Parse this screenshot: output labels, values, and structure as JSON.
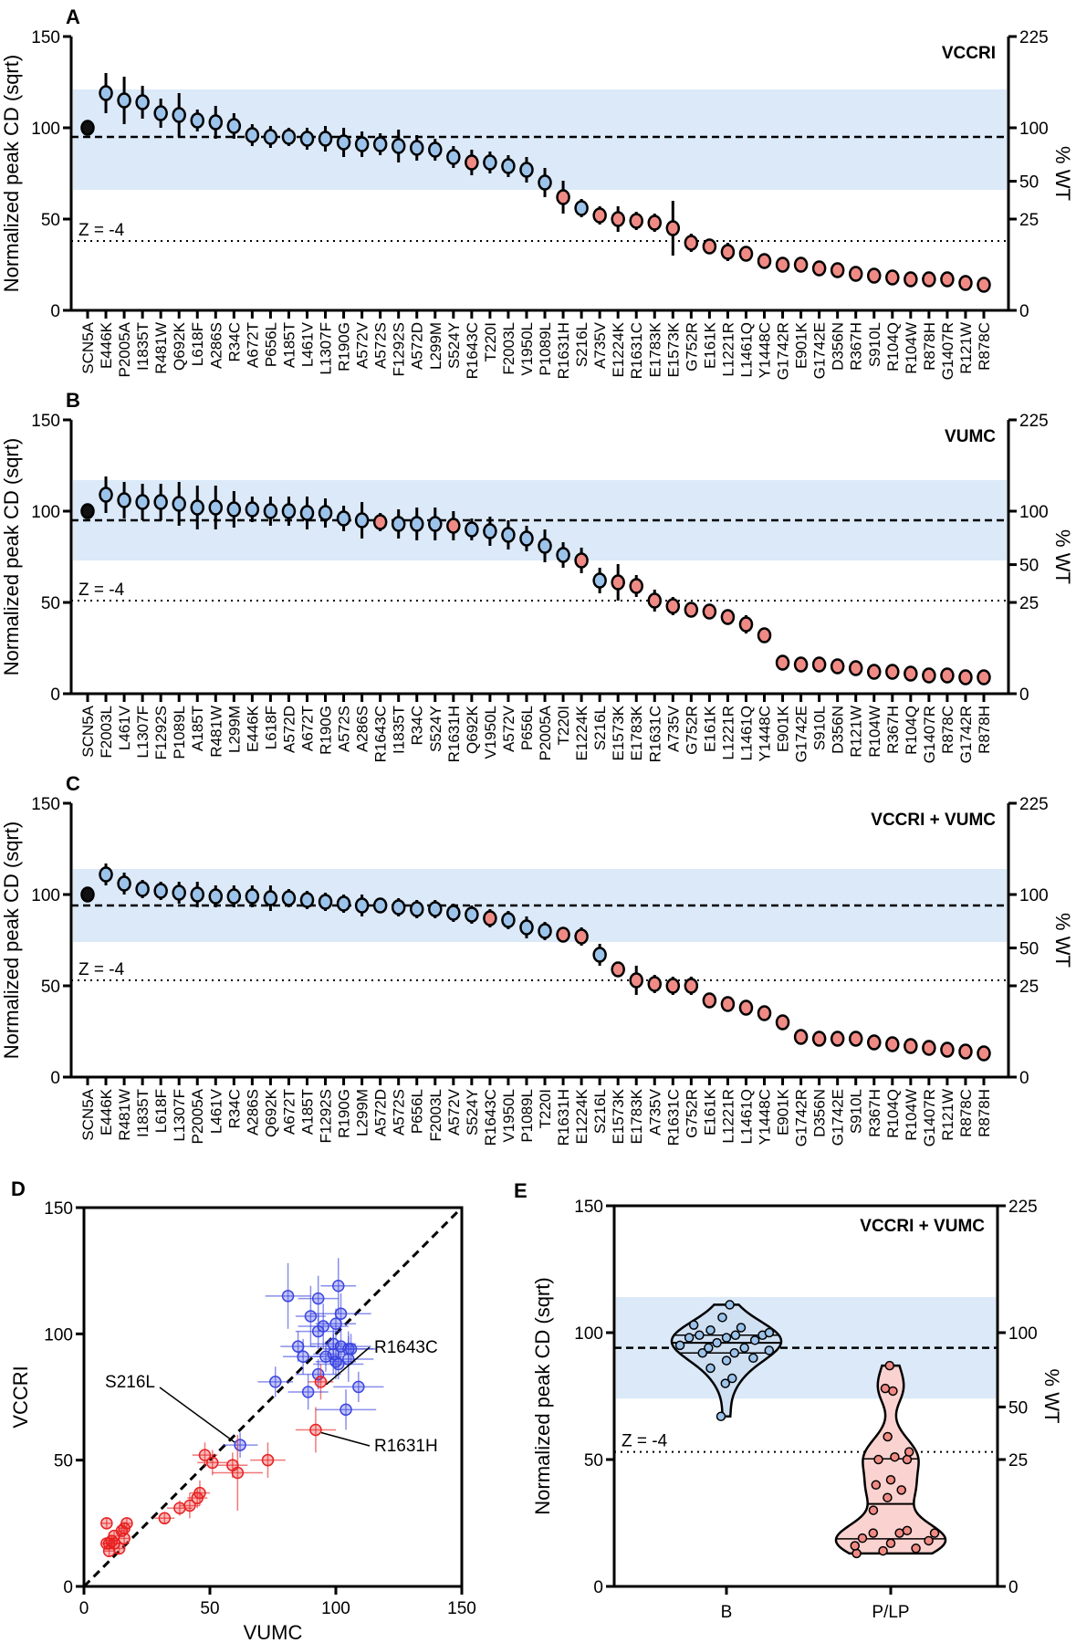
{
  "classification": {
    "control": [
      "SCN5A"
    ],
    "B": [
      "E446K",
      "P2005A",
      "I1835T",
      "R481W",
      "Q692K",
      "L618F",
      "A286S",
      "R34C",
      "A672T",
      "P656L",
      "A185T",
      "L461V",
      "L1307F",
      "R190G",
      "A572V",
      "A572S",
      "F1292S",
      "A572D",
      "L299M",
      "S524Y",
      "T220I",
      "F2003L",
      "V1950L",
      "P1089L",
      "S216L"
    ],
    "colors": {
      "control": "#111111",
      "B": "#9cc3ea",
      "P/LP": "#f08a84",
      "band": "#dbe9f8"
    }
  },
  "chart_data": [
    {
      "panel": "A",
      "type": "scatter",
      "title": "VCCRI",
      "ylabel": "Normalized peak CD (sqrt)",
      "y2label": "% WT",
      "ylim": [
        0,
        150
      ],
      "yticks": [
        0,
        50,
        100,
        150
      ],
      "y2ticks": [
        0,
        25,
        50,
        100,
        225
      ],
      "z_label": "Z = -4",
      "z_line": 38,
      "wt_line": 95,
      "band": [
        66,
        121
      ],
      "categories": [
        "SCN5A",
        "E446K",
        "P2005A",
        "I1835T",
        "R481W",
        "Q692K",
        "L618F",
        "A286S",
        "R34C",
        "A672T",
        "P656L",
        "A185T",
        "L461V",
        "L1307F",
        "R190G",
        "A572V",
        "A572S",
        "F1292S",
        "A572D",
        "L299M",
        "S524Y",
        "R1643C",
        "T220I",
        "F2003L",
        "V1950L",
        "P1089L",
        "R1631H",
        "S216L",
        "A735V",
        "E1224K",
        "R1631C",
        "E1783K",
        "E1573K",
        "G752R",
        "E161K",
        "L1221R",
        "L1461Q",
        "Y1448C",
        "G1742R",
        "E901K",
        "G1742E",
        "D356N",
        "R367H",
        "S910L",
        "R104Q",
        "R104W",
        "R878H",
        "G1407R",
        "R121W",
        "R878C"
      ],
      "values": [
        100,
        119,
        115,
        114,
        108,
        107,
        104,
        103,
        101,
        96,
        95,
        95,
        94,
        94,
        92,
        91,
        91,
        90,
        89,
        88,
        84,
        81,
        81,
        79,
        77,
        70,
        62,
        56,
        52,
        50,
        49,
        48,
        45,
        37,
        35,
        32,
        31,
        27,
        25,
        25,
        23,
        22,
        20,
        19,
        18,
        17,
        17,
        17,
        15,
        14
      ],
      "errors": [
        0,
        11,
        13,
        9,
        8,
        12,
        6,
        9,
        7,
        6,
        6,
        5,
        6,
        7,
        8,
        7,
        6,
        9,
        7,
        6,
        6,
        7,
        6,
        6,
        7,
        8,
        9,
        5,
        5,
        7,
        5,
        5,
        15,
        5,
        4,
        5,
        3,
        2,
        2,
        2,
        2,
        2,
        2,
        2,
        2,
        2,
        2,
        2,
        2,
        2
      ]
    },
    {
      "panel": "B",
      "type": "scatter",
      "title": "VUMC",
      "ylabel": "Normalized peak CD (sqrt)",
      "y2label": "% WT",
      "ylim": [
        0,
        150
      ],
      "yticks": [
        0,
        50,
        100,
        150
      ],
      "y2ticks": [
        0,
        25,
        50,
        100,
        225
      ],
      "z_label": "Z = -4",
      "z_line": 51,
      "wt_line": 95,
      "band": [
        73,
        117
      ],
      "categories": [
        "SCN5A",
        "F2003L",
        "L461V",
        "L1307F",
        "F1292S",
        "P1089L",
        "A185T",
        "R481W",
        "L299M",
        "E446K",
        "L618F",
        "A572D",
        "A672T",
        "R190G",
        "A572S",
        "A286S",
        "R1643C",
        "I1835T",
        "R34C",
        "S524Y",
        "R1631H",
        "Q692K",
        "V1950L",
        "A572V",
        "P656L",
        "P2005A",
        "T220I",
        "E1224K",
        "S216L",
        "E1573K",
        "E1783K",
        "R1631C",
        "A735V",
        "G752R",
        "E161K",
        "L1221R",
        "L1461Q",
        "Y1448C",
        "E901K",
        "G1742E",
        "S910L",
        "D356N",
        "R121W",
        "R104W",
        "R367H",
        "R104Q",
        "G1407R",
        "R878C",
        "G1742R",
        "R878H"
      ],
      "values": [
        100,
        109,
        106,
        105,
        105,
        104,
        102,
        102,
        101,
        101,
        100,
        100,
        99,
        99,
        96,
        95,
        94,
        93,
        93,
        93,
        92,
        90,
        89,
        87,
        85,
        81,
        76,
        73,
        62,
        61,
        59,
        51,
        48,
        46,
        45,
        42,
        38,
        32,
        17,
        16,
        16,
        15,
        14,
        12,
        12,
        11,
        10,
        10,
        9,
        9
      ],
      "errors": [
        0,
        10,
        10,
        10,
        10,
        12,
        12,
        12,
        10,
        7,
        8,
        8,
        9,
        8,
        7,
        10,
        5,
        8,
        9,
        9,
        8,
        6,
        8,
        8,
        7,
        9,
        7,
        7,
        7,
        10,
        6,
        6,
        5,
        4,
        4,
        4,
        5,
        4,
        2,
        2,
        2,
        2,
        2,
        2,
        2,
        2,
        2,
        2,
        2,
        2
      ]
    },
    {
      "panel": "C",
      "type": "scatter",
      "title": "VCCRI + VUMC",
      "ylabel": "Normalized peak CD (sqrt)",
      "y2label": "% WT",
      "ylim": [
        0,
        150
      ],
      "yticks": [
        0,
        50,
        100,
        150
      ],
      "y2ticks": [
        0,
        25,
        50,
        100,
        225
      ],
      "z_label": "Z = -4",
      "z_line": 53,
      "wt_line": 94,
      "band": [
        74,
        114
      ],
      "categories": [
        "SCN5A",
        "E446K",
        "R481W",
        "I1835T",
        "L618F",
        "L1307F",
        "P2005A",
        "L461V",
        "R34C",
        "A286S",
        "Q692K",
        "A672T",
        "A185T",
        "F1292S",
        "R190G",
        "L299M",
        "A572D",
        "A572S",
        "P656L",
        "F2003L",
        "A572V",
        "S524Y",
        "R1643C",
        "V1950L",
        "P1089L",
        "T220I",
        "R1631H",
        "E1224K",
        "S216L",
        "E1573K",
        "E1783K",
        "A735V",
        "R1631C",
        "G752R",
        "E161K",
        "L1221R",
        "L1461Q",
        "Y1448C",
        "E901K",
        "G1742R",
        "D356N",
        "G1742E",
        "S910L",
        "R367H",
        "R104Q",
        "R104W",
        "G1407R",
        "R121W",
        "R878C",
        "R878H"
      ],
      "values": [
        100,
        111,
        106,
        103,
        102,
        101,
        100,
        99,
        99,
        99,
        98,
        98,
        97,
        96,
        95,
        94,
        94,
        93,
        92,
        92,
        90,
        89,
        87,
        86,
        82,
        80,
        78,
        77,
        67,
        59,
        53,
        51,
        50,
        50,
        42,
        40,
        38,
        35,
        30,
        22,
        21,
        21,
        21,
        19,
        18,
        17,
        16,
        15,
        14,
        13
      ],
      "errors": [
        0,
        6,
        6,
        5,
        5,
        6,
        7,
        6,
        6,
        6,
        7,
        5,
        5,
        5,
        5,
        6,
        4,
        5,
        5,
        5,
        5,
        5,
        5,
        5,
        6,
        5,
        4,
        5,
        6,
        4,
        8,
        5,
        5,
        5,
        4,
        4,
        3,
        3,
        3,
        2,
        2,
        2,
        2,
        2,
        2,
        2,
        2,
        2,
        2,
        2
      ]
    },
    {
      "panel": "D",
      "type": "scatter",
      "xlabel": "VUMC",
      "ylabel": "VCCRI",
      "xlim": [
        0,
        150
      ],
      "ylim": [
        0,
        150
      ],
      "xticks": [
        0,
        50,
        100,
        150
      ],
      "yticks": [
        0,
        50,
        100,
        150
      ],
      "x_source": "B",
      "y_source": "A",
      "annotations": [
        {
          "label": "S216L",
          "variant": "S216L",
          "side": "left"
        },
        {
          "label": "R1643C",
          "variant": "R1643C",
          "side": "right"
        },
        {
          "label": "R1631H",
          "variant": "R1631H",
          "side": "right"
        }
      ]
    },
    {
      "panel": "E",
      "type": "violin",
      "title": "VCCRI + VUMC",
      "ylabel": "Normalized peak CD (sqrt)",
      "y2label": "% WT",
      "ylim": [
        0,
        150
      ],
      "yticks": [
        0,
        50,
        100,
        150
      ],
      "y2ticks": [
        0,
        25,
        50,
        100,
        225
      ],
      "z_label": "Z = -4",
      "z_line": 53,
      "wt_line": 94,
      "band": [
        74,
        114
      ],
      "categories": [
        "B",
        "P/LP"
      ],
      "source": "C"
    }
  ]
}
